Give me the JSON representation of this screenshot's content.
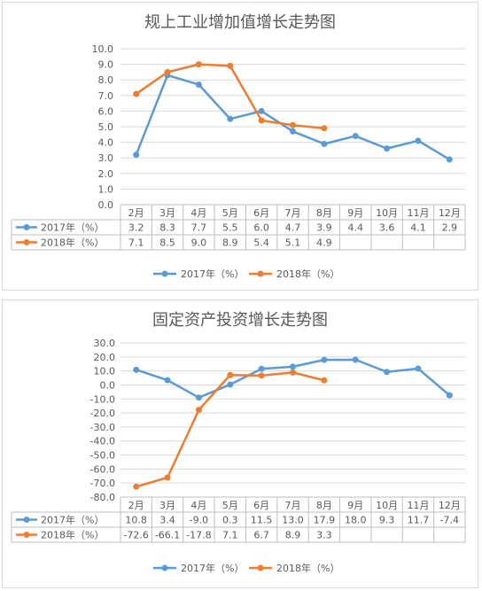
{
  "chart_data": [
    {
      "type": "line",
      "title": "规上工业增加值增长走势图",
      "categories": [
        "2月",
        "3月",
        "4月",
        "5月",
        "6月",
        "7月",
        "8月",
        "9月",
        "10月",
        "11月",
        "12月"
      ],
      "series": [
        {
          "name": "2017年（%）",
          "color": "#5b9bd5",
          "values": [
            3.2,
            8.3,
            7.7,
            5.5,
            6.0,
            4.7,
            3.9,
            4.4,
            3.6,
            4.1,
            2.9
          ],
          "labels": [
            "3.2",
            "8.3",
            "7.7",
            "5.5",
            "6.0",
            "4.7",
            "3.9",
            "4.4",
            "3.6",
            "4.1",
            "2.9"
          ]
        },
        {
          "name": "2018年（%）",
          "color": "#ed7d31",
          "values": [
            7.1,
            8.5,
            9.0,
            8.9,
            5.4,
            5.1,
            4.9,
            null,
            null,
            null,
            null
          ],
          "labels": [
            "7.1",
            "8.5",
            "9.0",
            "8.9",
            "5.4",
            "5.1",
            "4.9",
            "",
            "",
            "",
            ""
          ]
        }
      ],
      "ylim": [
        0,
        10
      ],
      "yticks": [
        "0.0",
        "1.0",
        "2.0",
        "3.0",
        "4.0",
        "5.0",
        "6.0",
        "7.0",
        "8.0",
        "9.0",
        "10.0"
      ],
      "legend": "bottom",
      "data_table": true
    },
    {
      "type": "line",
      "title": "固定资产投资增长走势图",
      "categories": [
        "2月",
        "3月",
        "4月",
        "5月",
        "6月",
        "7月",
        "8月",
        "9月",
        "10月",
        "11月",
        "12月"
      ],
      "series": [
        {
          "name": "2017年（%）",
          "color": "#5b9bd5",
          "values": [
            10.8,
            3.4,
            -9.0,
            0.3,
            11.5,
            13.0,
            17.9,
            18.0,
            9.3,
            11.7,
            -7.4
          ],
          "labels": [
            "10.8",
            "3.4",
            "-9.0",
            "0.3",
            "11.5",
            "13.0",
            "17.9",
            "18.0",
            "9.3",
            "11.7",
            "-7.4"
          ]
        },
        {
          "name": "2018年（%）",
          "color": "#ed7d31",
          "values": [
            -72.6,
            -66.1,
            -17.8,
            7.1,
            6.7,
            8.9,
            3.3,
            null,
            null,
            null,
            null
          ],
          "labels": [
            "-72.6",
            "-66.1",
            "-17.8",
            "7.1",
            "6.7",
            "8.9",
            "3.3",
            "",
            "",
            "",
            ""
          ]
        }
      ],
      "ylim": [
        -80,
        30
      ],
      "yticks": [
        "-80.0",
        "-70.0",
        "-60.0",
        "-50.0",
        "-40.0",
        "-30.0",
        "-20.0",
        "-10.0",
        "0.0",
        "10.0",
        "20.0",
        "30.0"
      ],
      "legend": "bottom",
      "data_table": true
    }
  ]
}
